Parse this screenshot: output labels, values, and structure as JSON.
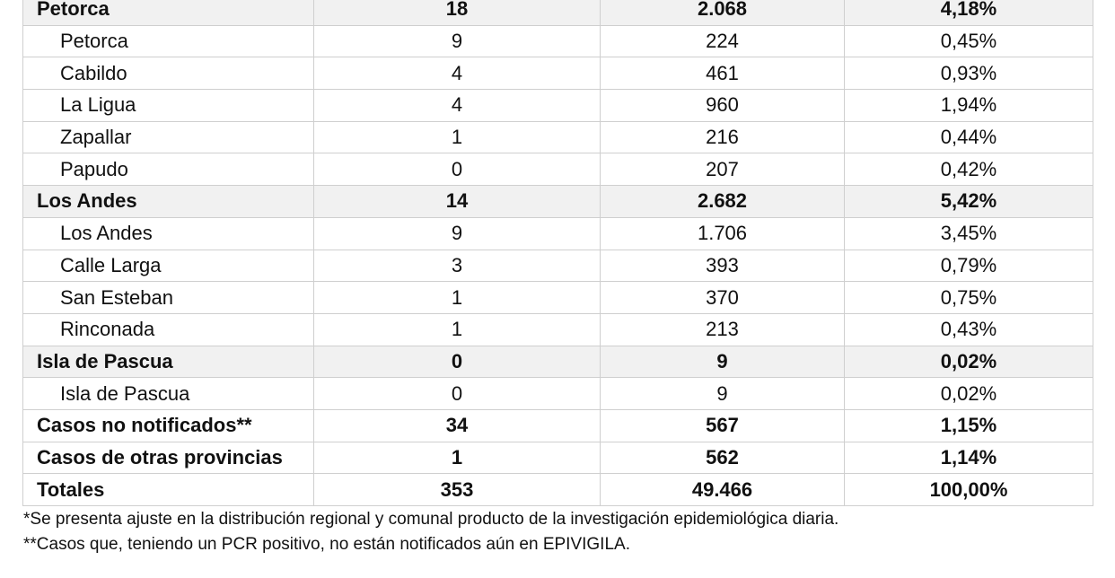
{
  "rows": [
    {
      "type": "group",
      "name": "Petorca",
      "cases": "18",
      "total": "2.068",
      "percent": "4,18%"
    },
    {
      "type": "sub",
      "name": "Petorca",
      "cases": "9",
      "total": "224",
      "percent": "0,45%"
    },
    {
      "type": "sub",
      "name": "Cabildo",
      "cases": "4",
      "total": "461",
      "percent": "0,93%"
    },
    {
      "type": "sub",
      "name": "La Ligua",
      "cases": "4",
      "total": "960",
      "percent": "1,94%"
    },
    {
      "type": "sub",
      "name": "Zapallar",
      "cases": "1",
      "total": "216",
      "percent": "0,44%"
    },
    {
      "type": "sub",
      "name": "Papudo",
      "cases": "0",
      "total": "207",
      "percent": "0,42%"
    },
    {
      "type": "group",
      "name": "Los Andes",
      "cases": "14",
      "total": "2.682",
      "percent": "5,42%"
    },
    {
      "type": "sub",
      "name": "Los Andes",
      "cases": "9",
      "total": "1.706",
      "percent": "3,45%"
    },
    {
      "type": "sub",
      "name": "Calle Larga",
      "cases": "3",
      "total": "393",
      "percent": "0,79%"
    },
    {
      "type": "sub",
      "name": "San Esteban",
      "cases": "1",
      "total": "370",
      "percent": "0,75%"
    },
    {
      "type": "sub",
      "name": "Rinconada",
      "cases": "1",
      "total": "213",
      "percent": "0,43%"
    },
    {
      "type": "group",
      "name": "Isla de Pascua",
      "cases": "0",
      "total": "9",
      "percent": "0,02%"
    },
    {
      "type": "sub",
      "name": "Isla de Pascua",
      "cases": "0",
      "total": "9",
      "percent": "0,02%"
    },
    {
      "type": "total",
      "name": "Casos no notificados**",
      "cases": "34",
      "total": "567",
      "percent": "1,15%"
    },
    {
      "type": "total",
      "name": "Casos de otras provincias",
      "cases": "1",
      "total": "562",
      "percent": "1,14%"
    },
    {
      "type": "total",
      "name": "Totales",
      "cases": "353",
      "total": "49.466",
      "percent": "100,00%"
    }
  ],
  "footnotes": {
    "note1": "*Se presenta ajuste en la distribución regional y comunal producto de la investigación epidemiológica diaria.",
    "note2": "**Casos que, teniendo un PCR positivo, no están notificados aún en EPIVIGILA."
  }
}
